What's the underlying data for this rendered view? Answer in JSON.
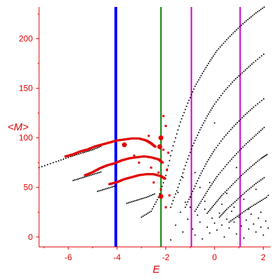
{
  "chart_data": {
    "type": "scatter",
    "xlabel": "E",
    "ylabel": "<M>",
    "xlim": [
      -7.2,
      2.3
    ],
    "ylim": [
      -10,
      232
    ],
    "xticks": [
      -6,
      -4,
      -2,
      0,
      2
    ],
    "yticks": [
      0,
      50,
      100,
      150,
      200
    ],
    "grid": false,
    "colors": {
      "axis": "#e00000",
      "black_points": "#000000",
      "red_points": "#e00000",
      "blue_line": "#0000ff",
      "green_line": "#008000",
      "magenta_line": "#cc00cc"
    },
    "vertical_lines": [
      {
        "x": -4.05,
        "color": "#0000ff",
        "width": 4
      },
      {
        "x": -2.2,
        "color": "#008000",
        "width": 2
      },
      {
        "x": -0.95,
        "color": "#cc00cc",
        "width": 2
      },
      {
        "x": 1.05,
        "color": "#cc00cc",
        "width": 2
      }
    ],
    "black_curves": [
      {
        "x": [
          -7.2,
          -6.5,
          -5.9,
          -5.4,
          -5.0,
          -4.6
        ],
        "y": [
          70,
          76,
          81,
          85,
          88,
          92
        ]
      },
      {
        "x": [
          -5.8,
          -5.4,
          -5.0,
          -4.6
        ],
        "y": [
          57,
          60,
          63,
          66
        ]
      },
      {
        "x": [
          -4.8,
          -4.4,
          -4.0
        ],
        "y": [
          46,
          49,
          52
        ]
      },
      {
        "x": [
          -3.6,
          -3.2,
          -2.8,
          -2.4
        ],
        "y": [
          34,
          37,
          40,
          44
        ]
      },
      {
        "x": [
          -3.0,
          -2.6,
          -2.3,
          -2.0,
          -1.7,
          -1.4,
          -1.1,
          -0.8,
          -0.5,
          -0.2,
          0.1,
          0.5,
          0.9,
          1.3,
          1.7,
          2.1
        ],
        "y": [
          20,
          26,
          40,
          62,
          92,
          116,
          135,
          152,
          165,
          177,
          188,
          199,
          209,
          218,
          226,
          233
        ]
      },
      {
        "x": [
          -1.8,
          -1.5,
          -1.2,
          -0.9,
          -0.6,
          -0.3,
          0.0,
          0.4,
          0.8,
          1.2,
          1.6,
          2.1
        ],
        "y": [
          30,
          50,
          72,
          92,
          108,
          122,
          134,
          147,
          158,
          167,
          176,
          186
        ]
      },
      {
        "x": [
          -1.2,
          -0.9,
          -0.6,
          -0.3,
          0.0,
          0.4,
          0.8,
          1.2,
          1.6,
          2.1
        ],
        "y": [
          30,
          46,
          62,
          76,
          88,
          101,
          112,
          122,
          131,
          141
        ]
      },
      {
        "x": [
          -0.8,
          -0.5,
          -0.2,
          0.1,
          0.5,
          0.9,
          1.3,
          1.7,
          2.1
        ],
        "y": [
          26,
          38,
          50,
          61,
          73,
          84,
          94,
          103,
          112
        ]
      },
      {
        "x": [
          -0.3,
          0.0,
          0.3,
          0.7,
          1.1,
          1.5,
          1.9,
          2.2
        ],
        "y": [
          24,
          33,
          42,
          52,
          62,
          71,
          79,
          84
        ]
      },
      {
        "x": [
          0.2,
          0.5,
          0.9,
          1.3,
          1.7,
          2.1
        ],
        "y": [
          20,
          28,
          37,
          46,
          54,
          61
        ]
      },
      {
        "x": [
          0.6,
          1.0,
          1.4,
          1.8,
          2.2
        ],
        "y": [
          15,
          22,
          29,
          35,
          41
        ]
      }
    ],
    "black_scatter": {
      "x": [
        -1.8,
        -1.6,
        -1.4,
        -1.3,
        -1.2,
        -1.1,
        -1.0,
        -0.9,
        -0.8,
        -0.7,
        -0.6,
        -0.5,
        -0.4,
        -0.3,
        -0.2,
        -0.1,
        0.0,
        0.1,
        0.2,
        0.3,
        0.4,
        0.5,
        0.6,
        0.7,
        0.8,
        0.9,
        1.0,
        1.1,
        1.2,
        1.3,
        1.4,
        1.5,
        1.6,
        1.7,
        1.8,
        1.9,
        2.0,
        2.1,
        2.2,
        -1.5,
        -1.0,
        -0.4,
        0.3,
        0.8,
        1.4,
        1.9,
        -0.6,
        0.5,
        1.2,
        -1.3,
        -0.2,
        1.7,
        2.2,
        0.0,
        -0.8,
        0.9
      ],
      "y": [
        -3,
        12,
        25,
        5,
        35,
        18,
        30,
        8,
        2,
        22,
        15,
        -2,
        28,
        10,
        4,
        19,
        14,
        7,
        24,
        12,
        0,
        18,
        9,
        26,
        15,
        3,
        20,
        11,
        -1,
        17,
        8,
        23,
        13,
        5,
        19,
        10,
        2,
        16,
        9,
        45,
        40,
        36,
        33,
        30,
        28,
        25,
        50,
        44,
        38,
        60,
        55,
        48,
        42,
        115,
        65,
        70
      ]
    },
    "red_curves": [
      {
        "x": [
          -6.1,
          -5.8,
          -5.5,
          -5.2,
          -4.9,
          -4.6,
          -4.3,
          -4.0,
          -3.7,
          -3.4,
          -3.1,
          -2.8,
          -2.6,
          -2.4
        ],
        "y": [
          81,
          83,
          86,
          88,
          91,
          93,
          95,
          97,
          98,
          99,
          99,
          97,
          94,
          90
        ]
      },
      {
        "x": [
          -5.3,
          -5.0,
          -4.7,
          -4.4,
          -4.1,
          -3.8,
          -3.5,
          -3.2,
          -2.9,
          -2.6,
          -2.3,
          -2.1
        ],
        "y": [
          62,
          65,
          69,
          72,
          74,
          77,
          79,
          80,
          81,
          80,
          78,
          74
        ]
      },
      {
        "x": [
          -4.3,
          -4.0,
          -3.7,
          -3.4,
          -3.1,
          -2.8,
          -2.5,
          -2.2,
          -2.0
        ],
        "y": [
          53,
          55,
          58,
          60,
          62,
          63,
          63,
          61,
          58
        ]
      }
    ],
    "red_scatter": {
      "x": [
        -3.1,
        -2.6,
        -2.5,
        -2.3,
        -2.1,
        -2.0,
        -2.2,
        -2.0,
        -1.9,
        -2.1,
        -3.3,
        -2.7,
        -1.95,
        -1.85
      ],
      "y": [
        75,
        70,
        55,
        65,
        88,
        112,
        48,
        30,
        85,
        122,
        82,
        102,
        68,
        42
      ]
    },
    "red_big_points": [
      {
        "x": -2.2,
        "y": 100
      },
      {
        "x": -2.25,
        "y": 91
      },
      {
        "x": -3.7,
        "y": 93
      },
      {
        "x": -2.2,
        "y": 41
      }
    ]
  }
}
